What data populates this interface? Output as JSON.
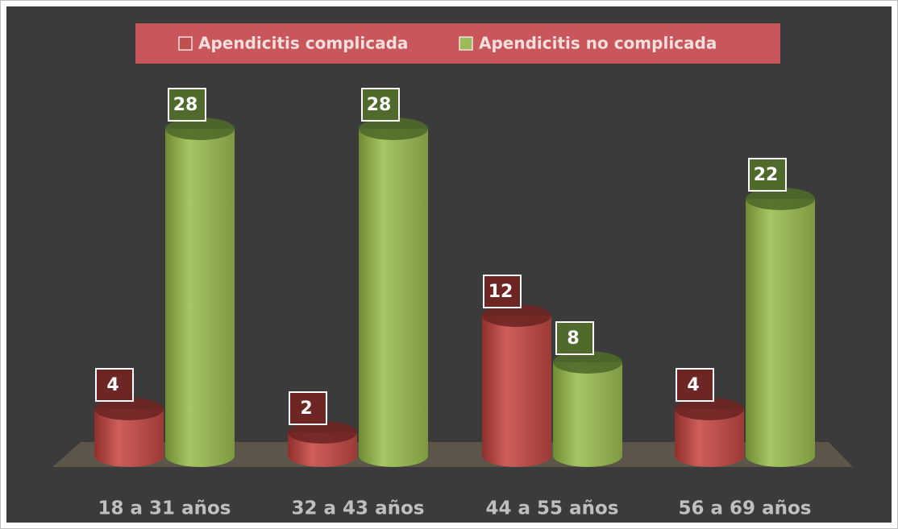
{
  "chart_data": {
    "type": "cylinder-bar",
    "categories": [
      "18 a 31 años",
      "32 a 43 años",
      "44 a 55 años",
      "56 a 69 años"
    ],
    "series": [
      {
        "name": "Apendicitis complicada",
        "color": "#c0504d",
        "values": [
          4,
          2,
          12,
          4
        ]
      },
      {
        "name": "Apendicitis no complicada",
        "color": "#9bbb59",
        "values": [
          28,
          28,
          8,
          22
        ]
      }
    ],
    "legend": "top"
  }
}
